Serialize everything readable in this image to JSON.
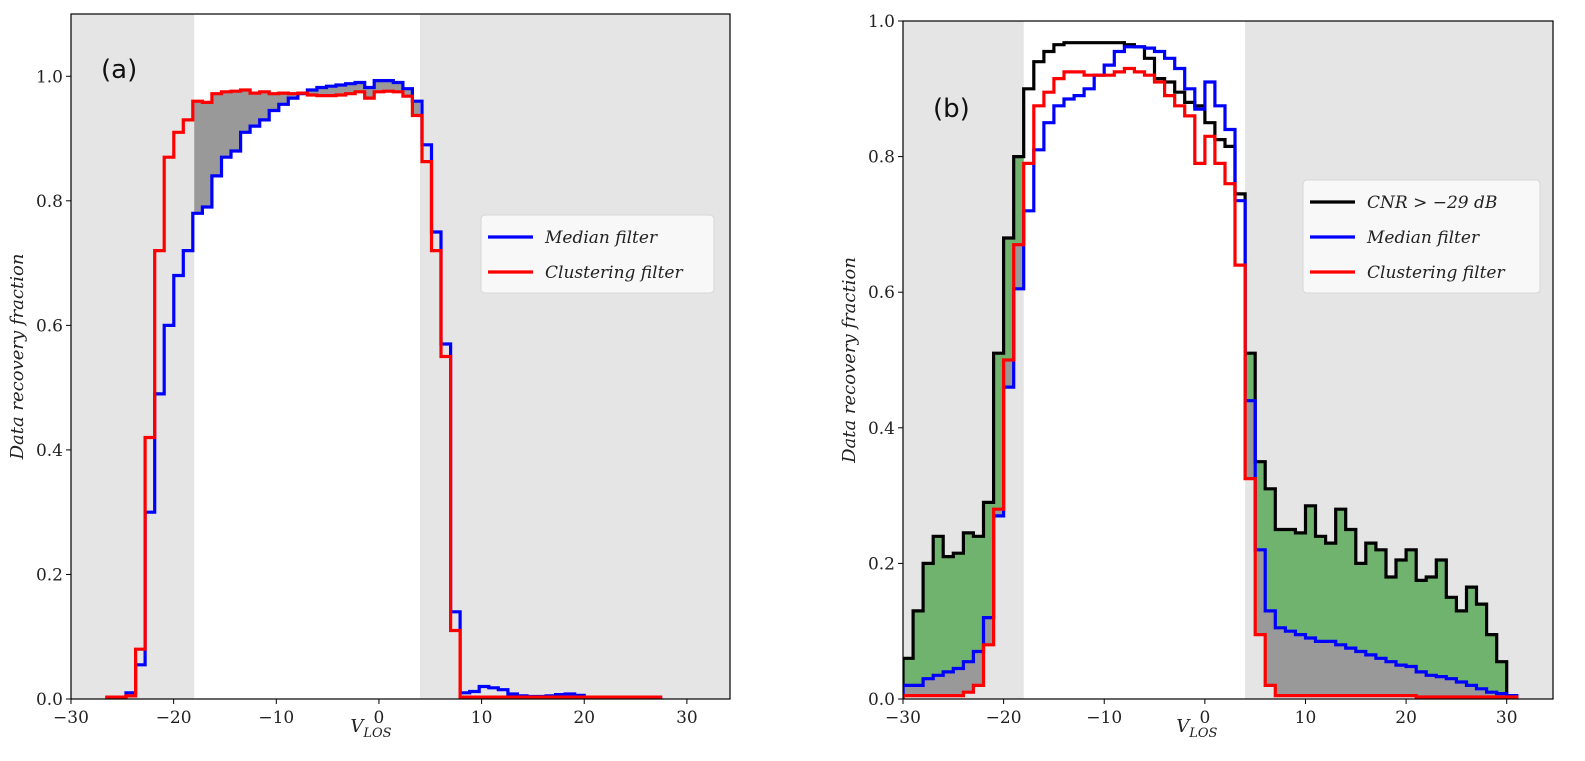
{
  "chart_data": [
    {
      "type": "line",
      "panel_label": "(a)",
      "xlabel": "V",
      "xlabel_sub": "LOS",
      "ylabel": "Data recovery fraction",
      "xlim": [
        -30,
        34.2
      ],
      "ylim": [
        0,
        1.1
      ],
      "xticks": [
        "−30",
        "−20",
        "−10",
        "0",
        "10",
        "20",
        "30"
      ],
      "xtick_values": [
        -30,
        -20,
        -10,
        0,
        10,
        20,
        30
      ],
      "yticks": [
        "0.0",
        "0.2",
        "0.4",
        "0.6",
        "0.8",
        "1.0"
      ],
      "ytick_values": [
        0,
        0.2,
        0.4,
        0.6,
        0.8,
        1.0
      ],
      "unshaded_range": [
        -18,
        4
      ],
      "bin_start": -26.5,
      "bin_width": 0.93,
      "legend_position": "center-right",
      "fills": [
        {
          "between": [
            "Clustering filter",
            "Median filter"
          ],
          "region": "inside",
          "color": "#999999"
        }
      ],
      "series": [
        {
          "name": "Median filter",
          "color": "#0000ff",
          "values": [
            0.002,
            0.003,
            0.01,
            0.055,
            0.3,
            0.49,
            0.6,
            0.68,
            0.72,
            0.78,
            0.79,
            0.84,
            0.87,
            0.88,
            0.91,
            0.92,
            0.93,
            0.945,
            0.955,
            0.965,
            0.972,
            0.978,
            0.982,
            0.984,
            0.986,
            0.988,
            0.99,
            0.982,
            0.993,
            0.993,
            0.99,
            0.98,
            0.96,
            0.89,
            0.75,
            0.57,
            0.14,
            0.01,
            0.012,
            0.02,
            0.018,
            0.015,
            0.008,
            0.005,
            0.004,
            0.004,
            0.005,
            0.007,
            0.008,
            0.006,
            0.003,
            0.002,
            0.002,
            0.002,
            0.002,
            0.002,
            0.002,
            0.002
          ]
        },
        {
          "name": "Clustering filter",
          "color": "#ff0000",
          "values": [
            0.003,
            0.003,
            0.005,
            0.08,
            0.42,
            0.72,
            0.87,
            0.91,
            0.93,
            0.96,
            0.958,
            0.972,
            0.975,
            0.976,
            0.978,
            0.973,
            0.975,
            0.972,
            0.973,
            0.972,
            0.973,
            0.97,
            0.969,
            0.969,
            0.97,
            0.972,
            0.975,
            0.965,
            0.975,
            0.976,
            0.975,
            0.968,
            0.937,
            0.863,
            0.72,
            0.55,
            0.11,
            0.003,
            0.003,
            0.003,
            0.003,
            0.003,
            0.003,
            0.003,
            0.003,
            0.003,
            0.003,
            0.003,
            0.003,
            0.003,
            0.003,
            0.003,
            0.003,
            0.003,
            0.003,
            0.003,
            0.003,
            0.003
          ]
        }
      ]
    },
    {
      "type": "line",
      "panel_label": "(b)",
      "xlabel": "V",
      "xlabel_sub": "LOS",
      "ylabel": "Data recovery fraction",
      "xlim": [
        -30,
        34.6
      ],
      "ylim": [
        0,
        1.0
      ],
      "xticks": [
        "−30",
        "−20",
        "−10",
        "0",
        "10",
        "20",
        "30"
      ],
      "xtick_values": [
        -30,
        -20,
        -10,
        0,
        10,
        20,
        30
      ],
      "yticks": [
        "0.0",
        "0.2",
        "0.4",
        "0.6",
        "0.8",
        "1.0"
      ],
      "ytick_values": [
        0,
        0.2,
        0.4,
        0.6,
        0.8,
        1.0
      ],
      "unshaded_range": [
        -18,
        4
      ],
      "bin_start": -30,
      "bin_width": 1,
      "legend_position": "center-right",
      "fills": [
        {
          "between": [
            "CNR > −29 dB",
            "Median filter"
          ],
          "region": "outside",
          "color": "#6fb36f"
        },
        {
          "between": [
            "Median filter",
            "Clustering filter"
          ],
          "region": "outside",
          "color": "#999999"
        }
      ],
      "series": [
        {
          "name": "CNR > −29 dB",
          "color": "#000000",
          "values": [
            0.06,
            0.13,
            0.2,
            0.24,
            0.21,
            0.215,
            0.245,
            0.24,
            0.29,
            0.51,
            0.68,
            0.8,
            0.9,
            0.94,
            0.955,
            0.965,
            0.968,
            0.968,
            0.968,
            0.968,
            0.968,
            0.968,
            0.965,
            0.962,
            0.945,
            0.915,
            0.91,
            0.895,
            0.88,
            0.875,
            0.85,
            0.825,
            0.815,
            0.745,
            0.51,
            0.35,
            0.31,
            0.25,
            0.25,
            0.245,
            0.285,
            0.24,
            0.23,
            0.28,
            0.25,
            0.2,
            0.23,
            0.22,
            0.18,
            0.205,
            0.22,
            0.175,
            0.18,
            0.205,
            0.15,
            0.13,
            0.165,
            0.14,
            0.095,
            0.055,
            0.0
          ]
        },
        {
          "name": "Median filter",
          "color": "#0000ff",
          "values": [
            0.02,
            0.02,
            0.03,
            0.035,
            0.04,
            0.045,
            0.055,
            0.07,
            0.12,
            0.27,
            0.46,
            0.605,
            0.72,
            0.81,
            0.85,
            0.875,
            0.885,
            0.89,
            0.9,
            0.92,
            0.935,
            0.955,
            0.962,
            0.962,
            0.96,
            0.955,
            0.945,
            0.93,
            0.9,
            0.87,
            0.91,
            0.875,
            0.84,
            0.735,
            0.44,
            0.22,
            0.13,
            0.105,
            0.1,
            0.095,
            0.09,
            0.085,
            0.085,
            0.08,
            0.075,
            0.07,
            0.065,
            0.06,
            0.055,
            0.05,
            0.048,
            0.04,
            0.035,
            0.033,
            0.03,
            0.025,
            0.02,
            0.015,
            0.01,
            0.008,
            0.005
          ]
        },
        {
          "name": "Clustering filter",
          "color": "#ff0000",
          "values": [
            0.005,
            0.005,
            0.005,
            0.005,
            0.005,
            0.005,
            0.01,
            0.02,
            0.08,
            0.28,
            0.5,
            0.67,
            0.79,
            0.875,
            0.895,
            0.915,
            0.925,
            0.925,
            0.92,
            0.92,
            0.92,
            0.925,
            0.93,
            0.925,
            0.92,
            0.91,
            0.89,
            0.875,
            0.86,
            0.79,
            0.83,
            0.79,
            0.76,
            0.64,
            0.325,
            0.095,
            0.02,
            0.005,
            0.005,
            0.005,
            0.005,
            0.005,
            0.005,
            0.005,
            0.005,
            0.005,
            0.005,
            0.005,
            0.005,
            0.005,
            0.005,
            0.003,
            0.003,
            0.003,
            0.003,
            0.003,
            0.003,
            0.003,
            0.003,
            0.003,
            0.003
          ]
        }
      ]
    }
  ],
  "colors": {
    "shade": "#e5e5e5"
  }
}
